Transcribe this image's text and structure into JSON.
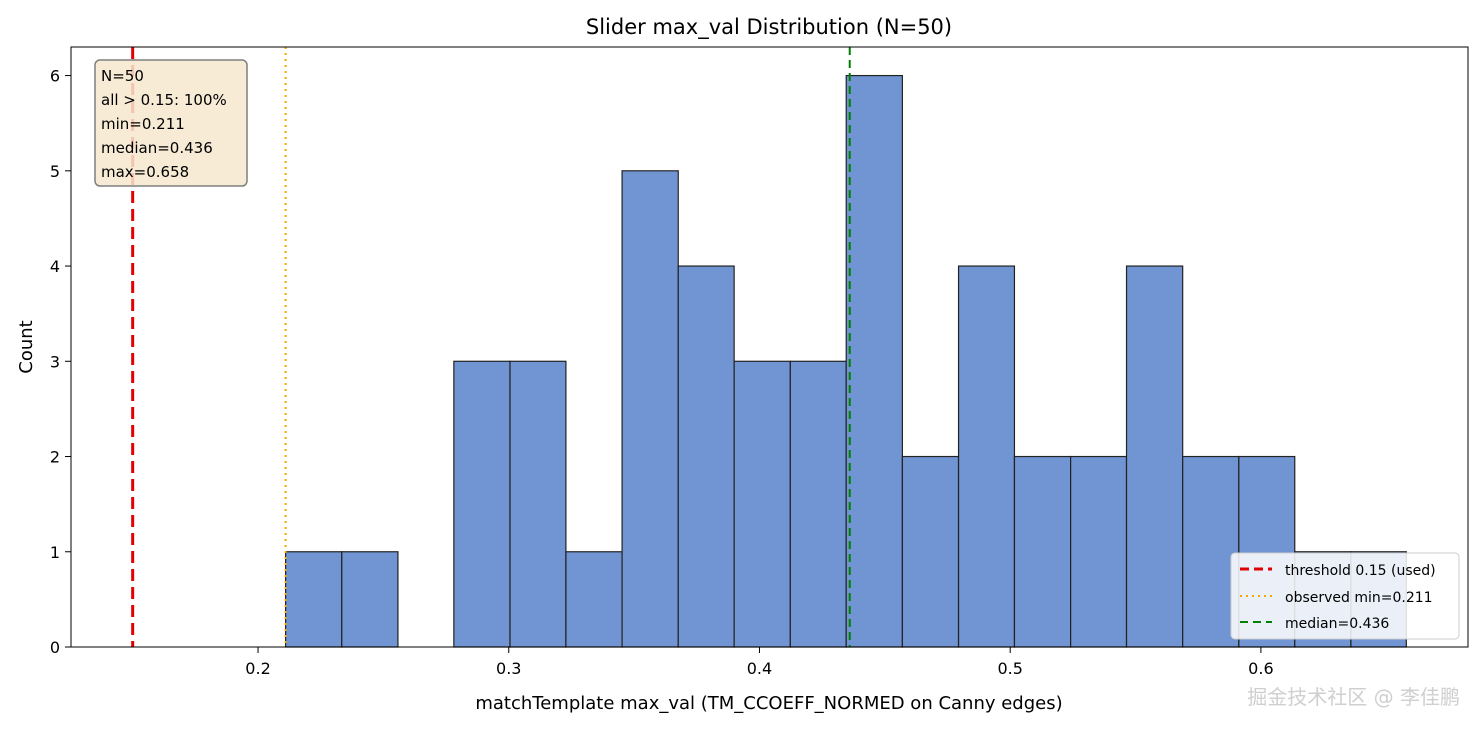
{
  "chart_data": {
    "type": "bar",
    "title": "Slider max_val Distribution (N=50)",
    "xlabel": "matchTemplate max_val (TM_CCOEFF_NORMED on Canny edges)",
    "ylabel": "Count",
    "xlim": [
      0.1254,
      0.6826
    ],
    "ylim": [
      0,
      6.3
    ],
    "xticks": [
      0.2,
      0.3,
      0.4,
      0.5,
      0.6
    ],
    "xtick_labels": [
      "0.2",
      "0.3",
      "0.4",
      "0.5",
      "0.6"
    ],
    "yticks": [
      0,
      1,
      2,
      3,
      4,
      5,
      6
    ],
    "ytick_labels": [
      "0",
      "1",
      "2",
      "3",
      "4",
      "5",
      "6"
    ],
    "grid": false,
    "bar_color": "#7095d2",
    "bar_edge_color": "#222222",
    "bins": [
      {
        "x0": 0.211,
        "x1": 0.2334,
        "count": 1
      },
      {
        "x0": 0.2334,
        "x1": 0.2558,
        "count": 1
      },
      {
        "x0": 0.2558,
        "x1": 0.2781,
        "count": 0
      },
      {
        "x0": 0.2781,
        "x1": 0.3005,
        "count": 3
      },
      {
        "x0": 0.3005,
        "x1": 0.3228,
        "count": 3
      },
      {
        "x0": 0.3228,
        "x1": 0.3452,
        "count": 1
      },
      {
        "x0": 0.3452,
        "x1": 0.3676,
        "count": 5
      },
      {
        "x0": 0.3676,
        "x1": 0.3899,
        "count": 4
      },
      {
        "x0": 0.3899,
        "x1": 0.4123,
        "count": 3
      },
      {
        "x0": 0.4123,
        "x1": 0.4346,
        "count": 3
      },
      {
        "x0": 0.4346,
        "x1": 0.457,
        "count": 6
      },
      {
        "x0": 0.457,
        "x1": 0.4794,
        "count": 2
      },
      {
        "x0": 0.4794,
        "x1": 0.5017,
        "count": 4
      },
      {
        "x0": 0.5017,
        "x1": 0.5241,
        "count": 2
      },
      {
        "x0": 0.5241,
        "x1": 0.5464,
        "count": 2
      },
      {
        "x0": 0.5464,
        "x1": 0.5688,
        "count": 4
      },
      {
        "x0": 0.5688,
        "x1": 0.5912,
        "count": 2
      },
      {
        "x0": 0.5912,
        "x1": 0.6135,
        "count": 2
      },
      {
        "x0": 0.6135,
        "x1": 0.6359,
        "count": 1
      },
      {
        "x0": 0.6359,
        "x1": 0.658,
        "count": 1
      }
    ],
    "vlines": [
      {
        "x": 0.15,
        "color": "#e00000",
        "style": "dashed",
        "label": "threshold 0.15 (used)"
      },
      {
        "x": 0.211,
        "color": "#f2a900",
        "style": "dotted",
        "label": "observed min=0.211"
      },
      {
        "x": 0.436,
        "color": "#008000",
        "style": "dashed",
        "label": "median=0.436"
      }
    ],
    "legend_position": "lower-right",
    "stats_box": [
      "N=50",
      "all > 0.15: 100%",
      "min=0.211",
      "median=0.436",
      "max=0.658"
    ]
  },
  "watermark": "掘金技术社区 @ 李佳鹏"
}
